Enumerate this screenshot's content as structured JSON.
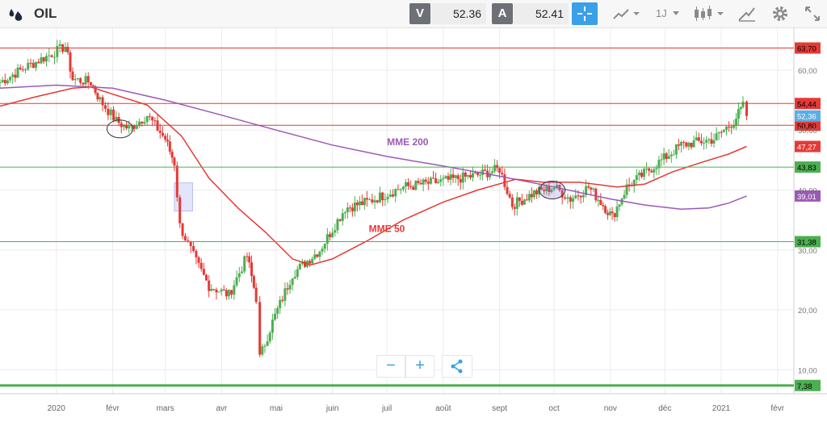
{
  "header": {
    "symbol": "OIL",
    "bid_label": "V",
    "bid_value": "52.36",
    "ask_label": "A",
    "ask_value": "52.41",
    "timeframe": "1J"
  },
  "toolbar_icons": [
    "oil-drop-icon",
    "crosshair-icon",
    "chart-type-icon",
    "candles-icon",
    "draw-icon",
    "gear-icon",
    "fullscreen-icon"
  ],
  "colors": {
    "up": "#4caf50",
    "down": "#e53935",
    "mme50": "#e53935",
    "mme200": "#9b59b6",
    "accent": "#3aa0e8",
    "support": "#4caf50",
    "resistance": "#e53935"
  },
  "zoom": {
    "minus": "−",
    "plus": "+"
  },
  "chart_data": {
    "type": "candlestick",
    "x_ticks": [
      "2020",
      "févr",
      "mars",
      "avr",
      "mai",
      "juin",
      "juil",
      "août",
      "sept",
      "oct",
      "nov",
      "déc",
      "2021",
      "févr"
    ],
    "y_ticks": [
      "60,00",
      "50,00",
      "40,00",
      "30,00",
      "20,00",
      "10,00"
    ],
    "ylim": [
      6,
      67
    ],
    "xlim": [
      "2019-12-01",
      "2021-02-10"
    ],
    "resistance_lines": [
      {
        "value": 63.7,
        "label": "63,70"
      },
      {
        "value": 54.44,
        "label": "54,44"
      },
      {
        "value": 50.8,
        "label": "50,80"
      }
    ],
    "support_lines": [
      {
        "value": 43.83,
        "label": "43,83"
      },
      {
        "value": 31.38,
        "label": "31,38"
      },
      {
        "value": 7.38,
        "label": "7,38"
      }
    ],
    "price_tags": [
      {
        "value": 52.36,
        "label": "52,36",
        "color": "#5aaee3"
      },
      {
        "value": 47.27,
        "label": "47,27",
        "color": "#e53935"
      },
      {
        "value": 39.01,
        "label": "39,01",
        "color": "#9b59b6"
      }
    ],
    "annotations": [
      {
        "text": "MME 200",
        "color": "#9b59b6",
        "date": "2020-07-01",
        "value": 47.5
      },
      {
        "text": "MME 50",
        "color": "#e53935",
        "date": "2020-06-21",
        "value": 33.0
      }
    ],
    "gap_box": {
      "from_date": "2020-03-06",
      "to_date": "2020-03-16",
      "low": 36.5,
      "high": 41.2
    },
    "ellipses": [
      {
        "date": "2020-02-05",
        "value": 50.2
      },
      {
        "date": "2020-09-30",
        "value": 40.0
      }
    ],
    "mme50_points": [
      [
        "2019-12-01",
        54.0
      ],
      [
        "2019-12-20",
        55.5
      ],
      [
        "2020-01-10",
        57.0
      ],
      [
        "2020-01-20",
        57.2
      ],
      [
        "2020-02-01",
        56.0
      ],
      [
        "2020-02-20",
        54.2
      ],
      [
        "2020-03-10",
        49.0
      ],
      [
        "2020-03-25",
        42.0
      ],
      [
        "2020-04-10",
        37.0
      ],
      [
        "2020-04-25",
        33.0
      ],
      [
        "2020-05-10",
        28.5
      ],
      [
        "2020-05-20",
        27.5
      ],
      [
        "2020-06-01",
        28.5
      ],
      [
        "2020-06-20",
        31.5
      ],
      [
        "2020-07-10",
        35.0
      ],
      [
        "2020-08-01",
        38.0
      ],
      [
        "2020-08-20",
        40.0
      ],
      [
        "2020-09-10",
        41.8
      ],
      [
        "2020-09-25",
        41.3
      ],
      [
        "2020-10-15",
        41.3
      ],
      [
        "2020-11-05",
        40.5
      ],
      [
        "2020-11-20",
        41.0
      ],
      [
        "2020-12-05",
        43.0
      ],
      [
        "2020-12-20",
        44.5
      ],
      [
        "2021-01-05",
        46.0
      ],
      [
        "2021-01-15",
        47.27
      ]
    ],
    "mme200_points": [
      [
        "2019-12-01",
        57.0
      ],
      [
        "2020-01-01",
        57.5
      ],
      [
        "2020-02-01",
        57.0
      ],
      [
        "2020-03-01",
        55.0
      ],
      [
        "2020-04-01",
        52.5
      ],
      [
        "2020-05-01",
        50.0
      ],
      [
        "2020-06-01",
        47.5
      ],
      [
        "2020-07-01",
        45.6
      ],
      [
        "2020-08-01",
        44.0
      ],
      [
        "2020-09-01",
        42.3
      ],
      [
        "2020-10-01",
        40.5
      ],
      [
        "2020-11-01",
        38.5
      ],
      [
        "2020-11-20",
        37.5
      ],
      [
        "2020-12-10",
        36.8
      ],
      [
        "2020-12-25",
        37.0
      ],
      [
        "2021-01-05",
        37.8
      ],
      [
        "2021-01-15",
        39.01
      ]
    ],
    "price_anchors": [
      [
        "2019-12-01",
        58.0
      ],
      [
        "2019-12-15",
        60.5
      ],
      [
        "2019-12-28",
        62.5
      ],
      [
        "2020-01-06",
        64.0
      ],
      [
        "2020-01-10",
        58.5
      ],
      [
        "2020-01-20",
        58.0
      ],
      [
        "2020-01-25",
        55.0
      ],
      [
        "2020-02-03",
        51.5
      ],
      [
        "2020-02-10",
        50.2
      ],
      [
        "2020-02-20",
        52.5
      ],
      [
        "2020-03-01",
        48.5
      ],
      [
        "2020-03-06",
        44.5
      ],
      [
        "2020-03-09",
        34.0
      ],
      [
        "2020-03-18",
        28.0
      ],
      [
        "2020-03-25",
        24.0
      ],
      [
        "2020-04-05",
        22.5
      ],
      [
        "2020-04-15",
        29.0
      ],
      [
        "2020-04-20",
        22.0
      ],
      [
        "2020-04-22",
        12.0
      ],
      [
        "2020-04-29",
        18.0
      ],
      [
        "2020-05-10",
        26.0
      ],
      [
        "2020-05-25",
        30.0
      ],
      [
        "2020-06-08",
        37.0
      ],
      [
        "2020-06-20",
        38.0
      ],
      [
        "2020-07-10",
        40.5
      ],
      [
        "2020-08-01",
        41.5
      ],
      [
        "2020-08-20",
        42.5
      ],
      [
        "2020-09-01",
        43.5
      ],
      [
        "2020-09-08",
        37.5
      ],
      [
        "2020-09-20",
        39.5
      ],
      [
        "2020-10-01",
        40.5
      ],
      [
        "2020-10-10",
        38.5
      ],
      [
        "2020-10-20",
        40.5
      ],
      [
        "2020-10-28",
        37.5
      ],
      [
        "2020-11-02",
        35.5
      ],
      [
        "2020-11-10",
        40.5
      ],
      [
        "2020-11-25",
        44.0
      ],
      [
        "2020-12-10",
        47.5
      ],
      [
        "2020-12-28",
        48.5
      ],
      [
        "2021-01-08",
        51.5
      ],
      [
        "2021-01-13",
        54.0
      ],
      [
        "2021-01-15",
        52.36
      ]
    ]
  }
}
